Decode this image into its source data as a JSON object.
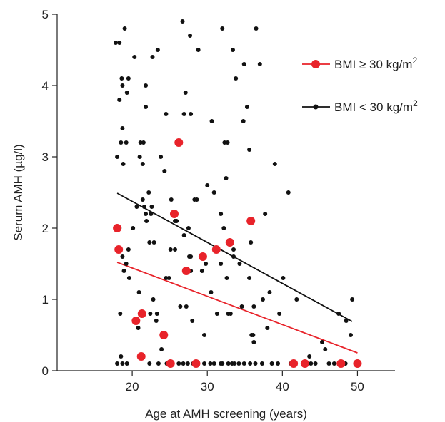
{
  "chart_data": {
    "type": "scatter",
    "title": "",
    "xlabel": "Age at AMH screening (years)",
    "ylabel": "Serum AMH (µg/l)",
    "xlim": [
      10,
      55
    ],
    "ylim": [
      0,
      5
    ],
    "xticks": [
      20,
      30,
      40,
      50
    ],
    "yticks": [
      0,
      1,
      2,
      3,
      4,
      5
    ],
    "legend_position": "top-right",
    "series": [
      {
        "name": "BMI ≥ 30 kg/m²",
        "legend_text": "BMI ≥ 30 kg/m",
        "legend_sup": "2",
        "color": "#e8232a",
        "marker": "large-circle",
        "points": [
          [
            18,
            2.0
          ],
          [
            18.2,
            1.7
          ],
          [
            20.5,
            0.7
          ],
          [
            21.3,
            0.8
          ],
          [
            21.2,
            0.2
          ],
          [
            24.2,
            0.5
          ],
          [
            25.1,
            0.1
          ],
          [
            25.6,
            2.2
          ],
          [
            26.2,
            3.2
          ],
          [
            27.2,
            1.4
          ],
          [
            28.5,
            0.1
          ],
          [
            29.4,
            1.6
          ],
          [
            31.2,
            1.7
          ],
          [
            33.0,
            1.8
          ],
          [
            35.8,
            2.1
          ],
          [
            41.5,
            0.1
          ],
          [
            43.0,
            0.1
          ],
          [
            47.8,
            0.1
          ],
          [
            50.0,
            0.1
          ]
        ],
        "trend": [
          [
            18,
            1.52
          ],
          [
            50,
            0.25
          ]
        ]
      },
      {
        "name": "BMI < 30 kg/m²",
        "legend_text": "BMI < 30 kg/m",
        "legend_sup": "2",
        "color": "#111111",
        "marker": "small-circle",
        "points": [
          [
            17.8,
            4.6
          ],
          [
            18.3,
            4.6
          ],
          [
            19.0,
            4.8
          ],
          [
            18.6,
            4.1
          ],
          [
            19.5,
            4.1
          ],
          [
            20.3,
            4.4
          ],
          [
            18.3,
            3.8
          ],
          [
            18.7,
            4.0
          ],
          [
            19.3,
            3.9
          ],
          [
            18.7,
            3.4
          ],
          [
            18.5,
            3.2
          ],
          [
            19.2,
            3.2
          ],
          [
            18.0,
            3.0
          ],
          [
            18.8,
            2.9
          ],
          [
            18.3,
            2.0
          ],
          [
            18.7,
            1.6
          ],
          [
            19.2,
            1.5
          ],
          [
            18.9,
            1.4
          ],
          [
            19.5,
            1.7
          ],
          [
            19.6,
            1.3
          ],
          [
            18.0,
            0.1
          ],
          [
            18.5,
            0.2
          ],
          [
            18.7,
            0.1
          ],
          [
            19.3,
            0.1
          ],
          [
            18.4,
            0.8
          ],
          [
            20.1,
            2.0
          ],
          [
            20.6,
            2.3
          ],
          [
            21.0,
            3.0
          ],
          [
            21.1,
            3.2
          ],
          [
            21.5,
            3.2
          ],
          [
            21.4,
            2.9
          ],
          [
            21.4,
            2.4
          ],
          [
            21.6,
            2.3
          ],
          [
            21.8,
            4.0
          ],
          [
            21.8,
            3.7
          ],
          [
            22.2,
            2.5
          ],
          [
            22.7,
            4.4
          ],
          [
            23.4,
            4.5
          ],
          [
            22.5,
            2.2
          ],
          [
            22.9,
            1.8
          ],
          [
            22.3,
            1.8
          ],
          [
            22.6,
            2.3
          ],
          [
            21.8,
            2.2
          ],
          [
            21.9,
            2.1
          ],
          [
            20.9,
            1.1
          ],
          [
            21.4,
            0.8
          ],
          [
            20.8,
            0.6
          ],
          [
            22.4,
            0.8
          ],
          [
            22.8,
            1.0
          ],
          [
            23.3,
            0.8
          ],
          [
            23.2,
            0.7
          ],
          [
            23.9,
            0.3
          ],
          [
            23.8,
            3.0
          ],
          [
            24.3,
            2.8
          ],
          [
            24.5,
            3.6
          ],
          [
            25.2,
            2.4
          ],
          [
            25.5,
            2.2
          ],
          [
            25.9,
            2.1
          ],
          [
            25.7,
            2.1
          ],
          [
            25.7,
            1.7
          ],
          [
            25.1,
            1.7
          ],
          [
            24.5,
            1.3
          ],
          [
            24.9,
            1.3
          ],
          [
            26.4,
            0.9
          ],
          [
            27.2,
            0.9
          ],
          [
            26.9,
            1.9
          ],
          [
            27.6,
            1.6
          ],
          [
            27.5,
            2.0
          ],
          [
            27.8,
            1.6
          ],
          [
            27.8,
            1.4
          ],
          [
            28.3,
            2.4
          ],
          [
            28.6,
            2.4
          ],
          [
            28.8,
            4.5
          ],
          [
            27.7,
            4.7
          ],
          [
            26.7,
            4.9
          ],
          [
            27.1,
            3.9
          ],
          [
            26.9,
            3.6
          ],
          [
            27.8,
            3.6
          ],
          [
            26.2,
            0.1
          ],
          [
            26.8,
            0.1
          ],
          [
            25.3,
            0.1
          ],
          [
            23.5,
            0.1
          ],
          [
            22.3,
            0.1
          ],
          [
            29.3,
            1.4
          ],
          [
            29.6,
            0.5
          ],
          [
            30.0,
            2.6
          ],
          [
            30.6,
            3.5
          ],
          [
            30.9,
            2.5
          ],
          [
            31.8,
            1.5
          ],
          [
            31.8,
            2.2
          ],
          [
            32.0,
            4.8
          ],
          [
            32.3,
            3.2
          ],
          [
            32.7,
            3.2
          ],
          [
            32.2,
            2.0
          ],
          [
            32.5,
            2.7
          ],
          [
            32.6,
            1.3
          ],
          [
            32.8,
            0.8
          ],
          [
            33.1,
            0.8
          ],
          [
            33.4,
            4.5
          ],
          [
            33.5,
            1.7
          ],
          [
            33.5,
            1.6
          ],
          [
            33.8,
            4.1
          ],
          [
            34.3,
            1.5
          ],
          [
            34.6,
            0.9
          ],
          [
            34.9,
            4.3
          ],
          [
            35.3,
            3.7
          ],
          [
            34.8,
            3.5
          ],
          [
            35.6,
            3.1
          ],
          [
            35.8,
            1.8
          ],
          [
            35.6,
            1.3
          ],
          [
            35.9,
            0.5
          ],
          [
            36.1,
            0.5
          ],
          [
            36.2,
            0.4
          ],
          [
            36.5,
            4.8
          ],
          [
            36.2,
            0.9
          ],
          [
            37.0,
            4.3
          ],
          [
            37.4,
            1.0
          ],
          [
            37.7,
            2.2
          ],
          [
            38.0,
            0.6
          ],
          [
            38.3,
            1.1
          ],
          [
            39.0,
            2.9
          ],
          [
            39.6,
            0.8
          ],
          [
            40.1,
            1.3
          ],
          [
            40.8,
            2.5
          ],
          [
            41.1,
            0.1
          ],
          [
            41.9,
            1.0
          ],
          [
            42.9,
            0.1
          ],
          [
            43.8,
            0.1
          ],
          [
            43.6,
            0.2
          ],
          [
            44.4,
            0.1
          ],
          [
            45.3,
            0.4
          ],
          [
            45.7,
            0.3
          ],
          [
            46.2,
            0.1
          ],
          [
            46.9,
            0.1
          ],
          [
            47.5,
            0.1
          ],
          [
            47.5,
            0.8
          ],
          [
            48.5,
            0.7
          ],
          [
            49.1,
            0.5
          ],
          [
            49.3,
            1.0
          ],
          [
            48.4,
            0.1
          ],
          [
            29.6,
            0.1
          ],
          [
            31.8,
            0.1
          ],
          [
            34.2,
            0.1
          ],
          [
            35.7,
            0.1
          ],
          [
            37.3,
            0.1
          ],
          [
            38.6,
            0.1
          ],
          [
            39.4,
            0.1
          ],
          [
            30.4,
            0.1
          ],
          [
            33.3,
            0.1
          ],
          [
            31.3,
            0.8
          ],
          [
            30.5,
            1.1
          ],
          [
            28.0,
            0.7
          ],
          [
            29.8,
            1.5
          ],
          [
            24.6,
            0.1
          ],
          [
            28.1,
            0.1
          ],
          [
            27.4,
            0.1
          ],
          [
            32.0,
            0.1
          ],
          [
            30.9,
            0.1
          ],
          [
            33.6,
            0.1
          ],
          [
            34.9,
            0.1
          ],
          [
            36.4,
            0.1
          ],
          [
            32.8,
            0.1
          ]
        ],
        "trend": [
          [
            18,
            2.49
          ],
          [
            49.3,
            0.69
          ]
        ]
      }
    ]
  }
}
